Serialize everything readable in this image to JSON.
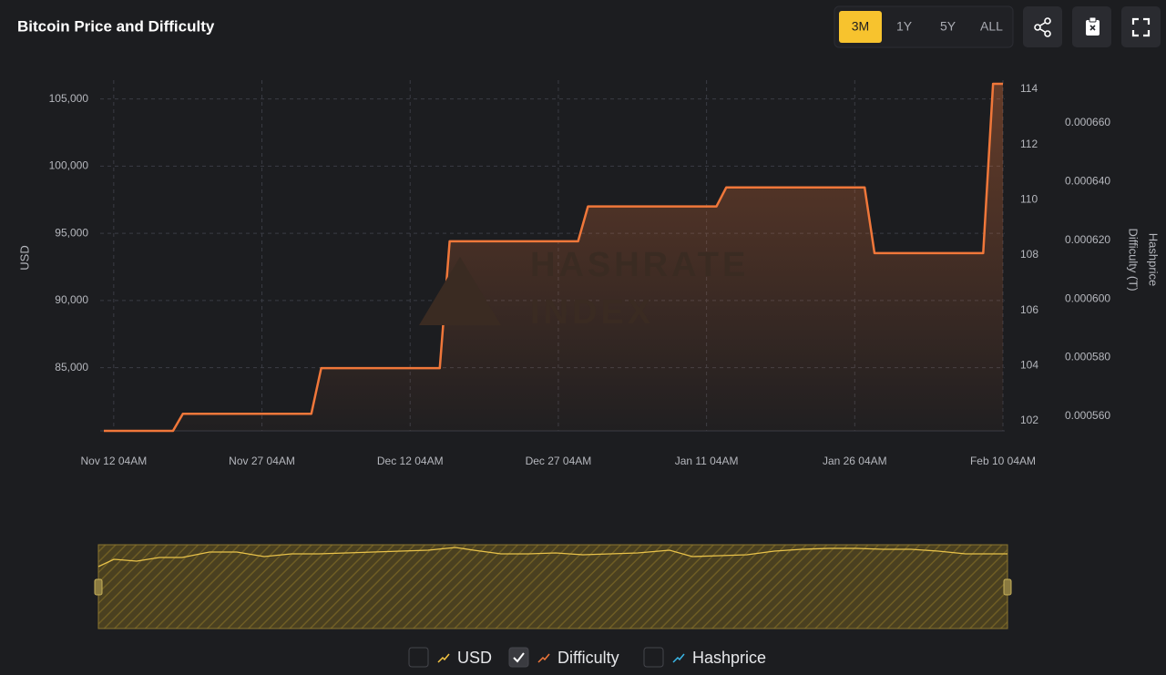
{
  "toolbar": {
    "ranges": [
      "3M",
      "1Y",
      "5Y",
      "ALL"
    ],
    "active": "3M"
  },
  "chart_data": {
    "type": "line",
    "title": "Bitcoin Price and Difficulty",
    "watermark": [
      "HASHRATE",
      "INDEX"
    ],
    "xlim": [
      "Nov 11 04AM",
      "Feb 10 04AM"
    ],
    "xticks": [
      "Nov 12 04AM",
      "Nov 27 04AM",
      "Dec 12 04AM",
      "Dec 27 04AM",
      "Jan 11 04AM",
      "Jan 26 04AM",
      "Feb 10 04AM"
    ],
    "ylabel": "USD",
    "ylim": [
      80300,
      106400
    ],
    "yticks": [
      {
        "value": 85000,
        "label": "85,000"
      },
      {
        "value": 90000,
        "label": "90,000"
      },
      {
        "value": 95000,
        "label": "95,000"
      },
      {
        "value": 100000,
        "label": "100,000"
      },
      {
        "value": 105000,
        "label": "105,000"
      }
    ],
    "y2label": "Difficulty (T)",
    "y2lim": [
      101.64,
      114.33
    ],
    "y2ticks": [
      102,
      104,
      106,
      108,
      110,
      112,
      114
    ],
    "y3label": "Hashprice",
    "y3lim": [
      0.000555,
      0.0006746
    ],
    "y3ticks": [
      {
        "value": 0.00056,
        "label": "0.000560"
      },
      {
        "value": 0.00058,
        "label": "0.000580"
      },
      {
        "value": 0.0006,
        "label": "0.000600"
      },
      {
        "value": 0.00062,
        "label": "0.000620"
      },
      {
        "value": 0.00064,
        "label": "0.000640"
      },
      {
        "value": 0.00066,
        "label": "0.000660"
      }
    ],
    "grid": true,
    "series": [
      {
        "name": "USD",
        "color": "#f5c542",
        "axis": "y",
        "visible": false
      },
      {
        "name": "Difficulty",
        "color": "#f0773a",
        "axis": "y2",
        "visible": true,
        "x": [
          "Nov 11 04AM",
          "Nov 18 04AM",
          "Nov 19 04AM",
          "Dec 2 04AM",
          "Dec 3 04AM",
          "Dec 15 04AM",
          "Dec 16 04AM",
          "Dec 29 04AM",
          "Dec 30 04AM",
          "Jan 12 04AM",
          "Jan 13 04AM",
          "Jan 27 04AM",
          "Jan 28 04AM",
          "Feb 8 04AM",
          "Feb 9 04AM",
          "Feb 10 04AM"
        ],
        "values": [
          101.64,
          101.64,
          102.26,
          102.26,
          103.91,
          103.91,
          108.5,
          108.5,
          109.76,
          109.76,
          110.45,
          110.45,
          108.07,
          108.07,
          114.2,
          114.2
        ]
      },
      {
        "name": "Hashprice",
        "color": "#3ab7e8",
        "axis": "y3",
        "visible": false
      }
    ]
  }
}
